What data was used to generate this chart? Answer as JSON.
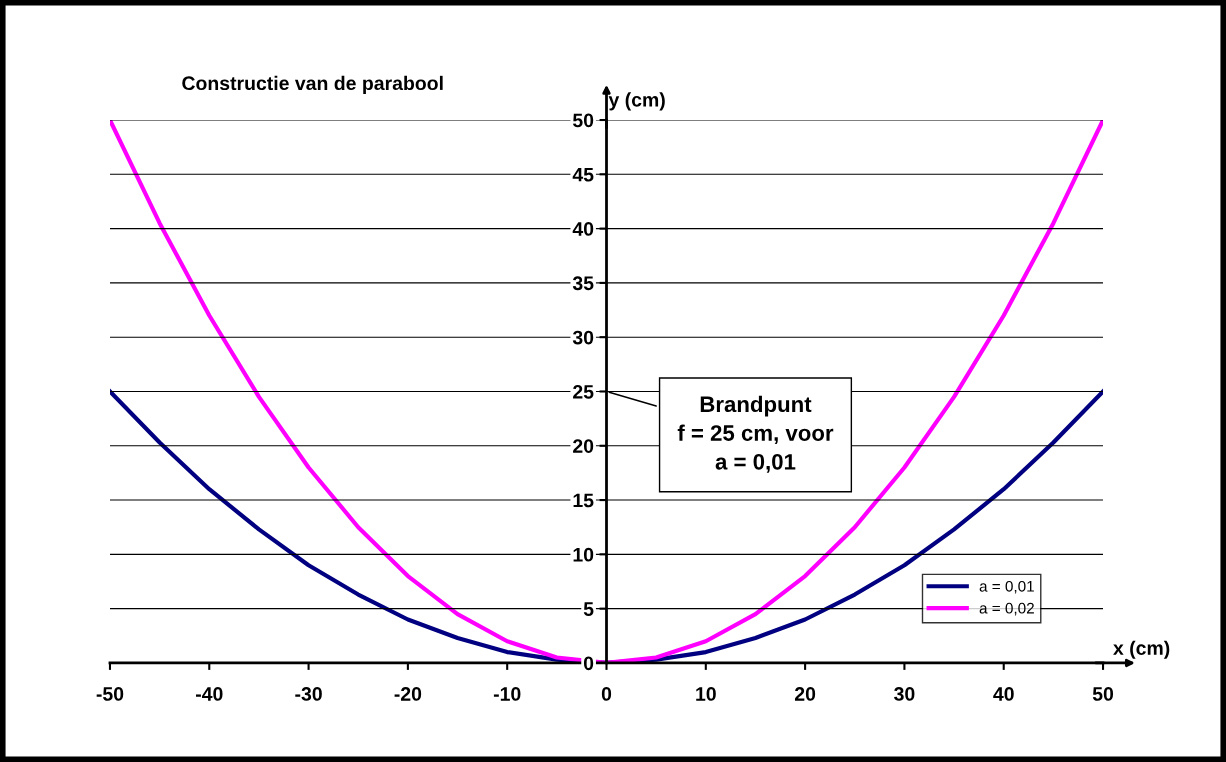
{
  "chart_data": {
    "type": "line",
    "title": "Constructie van de parabool",
    "xlabel": "x (cm)",
    "ylabel": "y (cm)",
    "x": [
      -50,
      -45,
      -40,
      -35,
      -30,
      -25,
      -20,
      -15,
      -10,
      -5,
      0,
      5,
      10,
      15,
      20,
      25,
      30,
      35,
      40,
      45,
      50
    ],
    "series": [
      {
        "name": "a = 0,01",
        "color": "#000080",
        "values": [
          25,
          20.3,
          16,
          12.3,
          9,
          6.3,
          4,
          2.3,
          1,
          0.3,
          0,
          0.3,
          1,
          2.3,
          4,
          6.3,
          9,
          12.3,
          16,
          20.3,
          25
        ]
      },
      {
        "name": "a = 0,02",
        "color": "#ff00ff",
        "values": [
          50,
          40.5,
          32,
          24.5,
          18,
          12.5,
          8,
          4.5,
          2,
          0.5,
          0,
          0.5,
          2,
          4.5,
          8,
          12.5,
          18,
          24.5,
          32,
          40.5,
          50
        ]
      }
    ],
    "xlim": [
      -50,
      50
    ],
    "ylim": [
      0,
      50
    ],
    "xticks": [
      -50,
      -40,
      -30,
      -20,
      -10,
      0,
      10,
      20,
      30,
      40,
      50
    ],
    "yticks": [
      0,
      5,
      10,
      15,
      20,
      25,
      30,
      35,
      40,
      45,
      50
    ],
    "annotations": [
      "Brandpunt\nf = 25 cm, voor\na = 0,01"
    ],
    "grid": "y",
    "legend": "bottom right",
    "marker": "none",
    "line_style": "solid"
  }
}
